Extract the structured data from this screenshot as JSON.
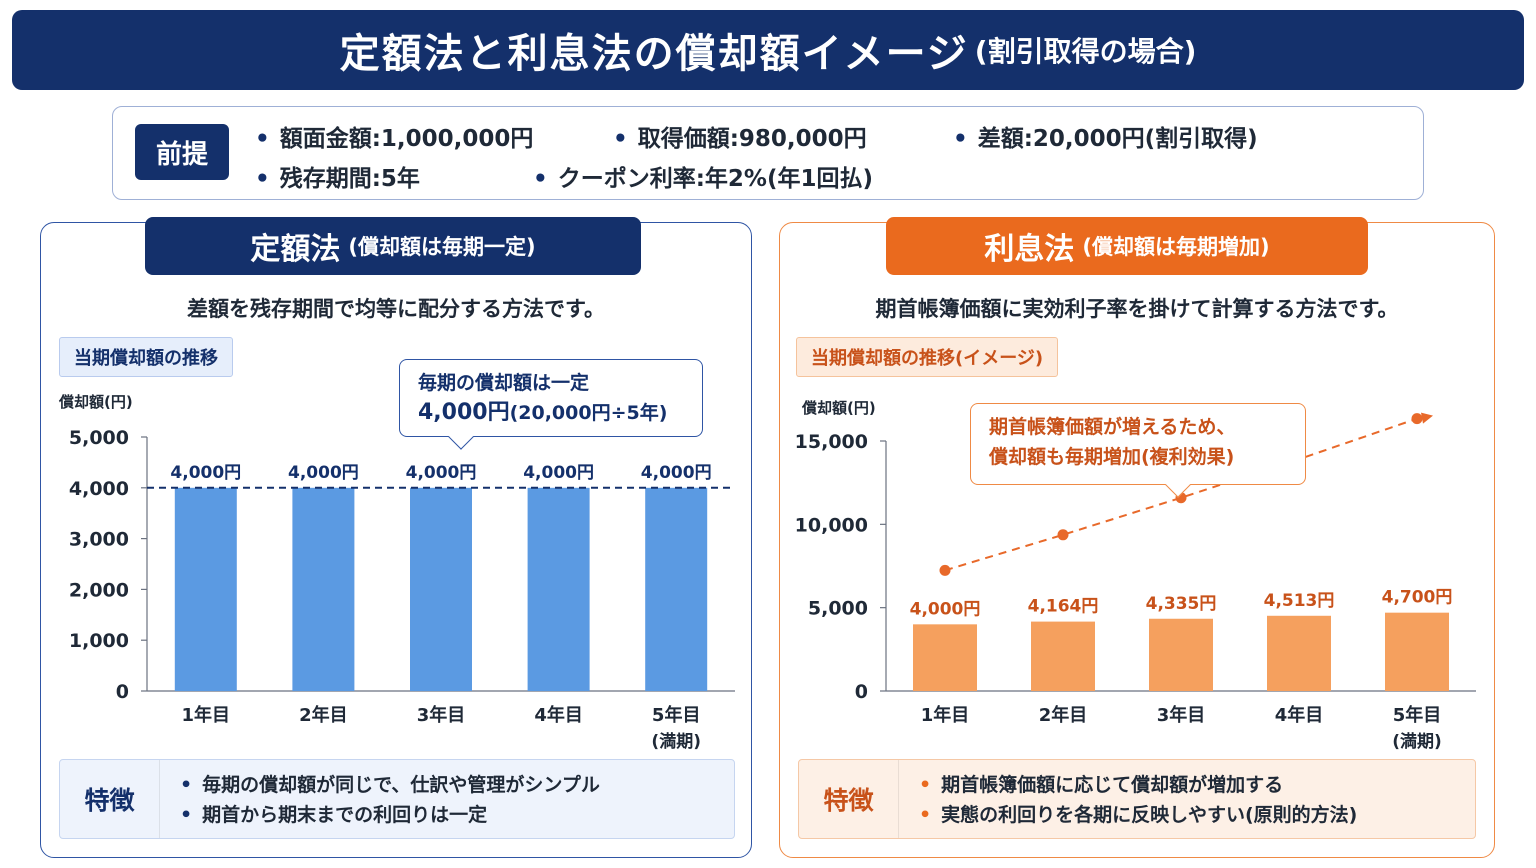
{
  "title": {
    "main": "定額法と利息法の償却額イメージ",
    "sub": "(割引取得の場合)"
  },
  "premise": {
    "tag": "前提",
    "items": [
      "額面金額:1,000,000円",
      "取得価額:980,000円",
      "差額:20,000円(割引取得)",
      "残存期間:5年",
      "クーポン利率:年2%(年1回払)"
    ]
  },
  "left": {
    "heading": "定額法",
    "heading_sub": "(償却額は毎期一定)",
    "description": "差額を残存期間で均等に配分する方法です。",
    "trend_label": "当期償却額の推移",
    "callout_line1": "毎期の償却額は一定",
    "callout_line2_big": "4,000円",
    "callout_line2_small": "(20,000円÷5年)",
    "feature_tag": "特徴",
    "features": [
      "毎期の償却額が同じで、仕訳や管理がシンプル",
      "期首から期末までの利回りは一定"
    ],
    "colors": {
      "bar": "#5b9ae2",
      "line": "#14306b"
    }
  },
  "right": {
    "heading": "利息法",
    "heading_sub": "(償却額は毎期増加)",
    "description": "期首帳簿価額に実効利子率を掛けて計算する方法です。",
    "trend_label": "当期償却額の推移(イメージ)",
    "callout_line1": "期首帳簿価額が増えるため、",
    "callout_line2": "償却額も毎期増加(複利効果)",
    "feature_tag": "特徴",
    "features": [
      "期首帳簿価額に応じて償却額が増加する",
      "実態の利回りを各期に反映しやすい(原則的方法)"
    ],
    "colors": {
      "bar": "#f5a05e",
      "line": "#e8692a"
    }
  },
  "chart_data": [
    {
      "type": "bar",
      "categories": [
        "1年目",
        "2年目",
        "3年目",
        "4年目",
        "5年目"
      ],
      "category_notes": [
        "",
        "",
        "",
        "",
        "(満期)"
      ],
      "values": [
        4000,
        4000,
        4000,
        4000,
        4000
      ],
      "data_labels": [
        "4,000円",
        "4,000円",
        "4,000円",
        "4,000円",
        "4,000円"
      ],
      "ylabel": "償却額(円)",
      "ylim": [
        0,
        5000
      ],
      "yticks": [
        0,
        1000,
        2000,
        3000,
        4000,
        5000
      ],
      "ytick_labels": [
        "0",
        "1,000",
        "2,000",
        "3,000",
        "4,000",
        "5,000"
      ],
      "reference_line": 4000,
      "grid": false
    },
    {
      "type": "bar",
      "categories": [
        "1年目",
        "2年目",
        "3年目",
        "4年目",
        "5年目"
      ],
      "category_notes": [
        "",
        "",
        "",
        "",
        "(満期)"
      ],
      "values": [
        4000,
        4164,
        4335,
        4513,
        4700
      ],
      "data_labels": [
        "4,000円",
        "4,164円",
        "4,335円",
        "4,513円",
        "4,700円"
      ],
      "ylabel": "償却額(円)",
      "ylim": [
        0,
        15000
      ],
      "yticks": [
        0,
        5000,
        10000,
        15000
      ],
      "ytick_labels": [
        "0",
        "5,000",
        "10,000",
        "15,000"
      ],
      "trend_line": true,
      "grid": false
    }
  ]
}
